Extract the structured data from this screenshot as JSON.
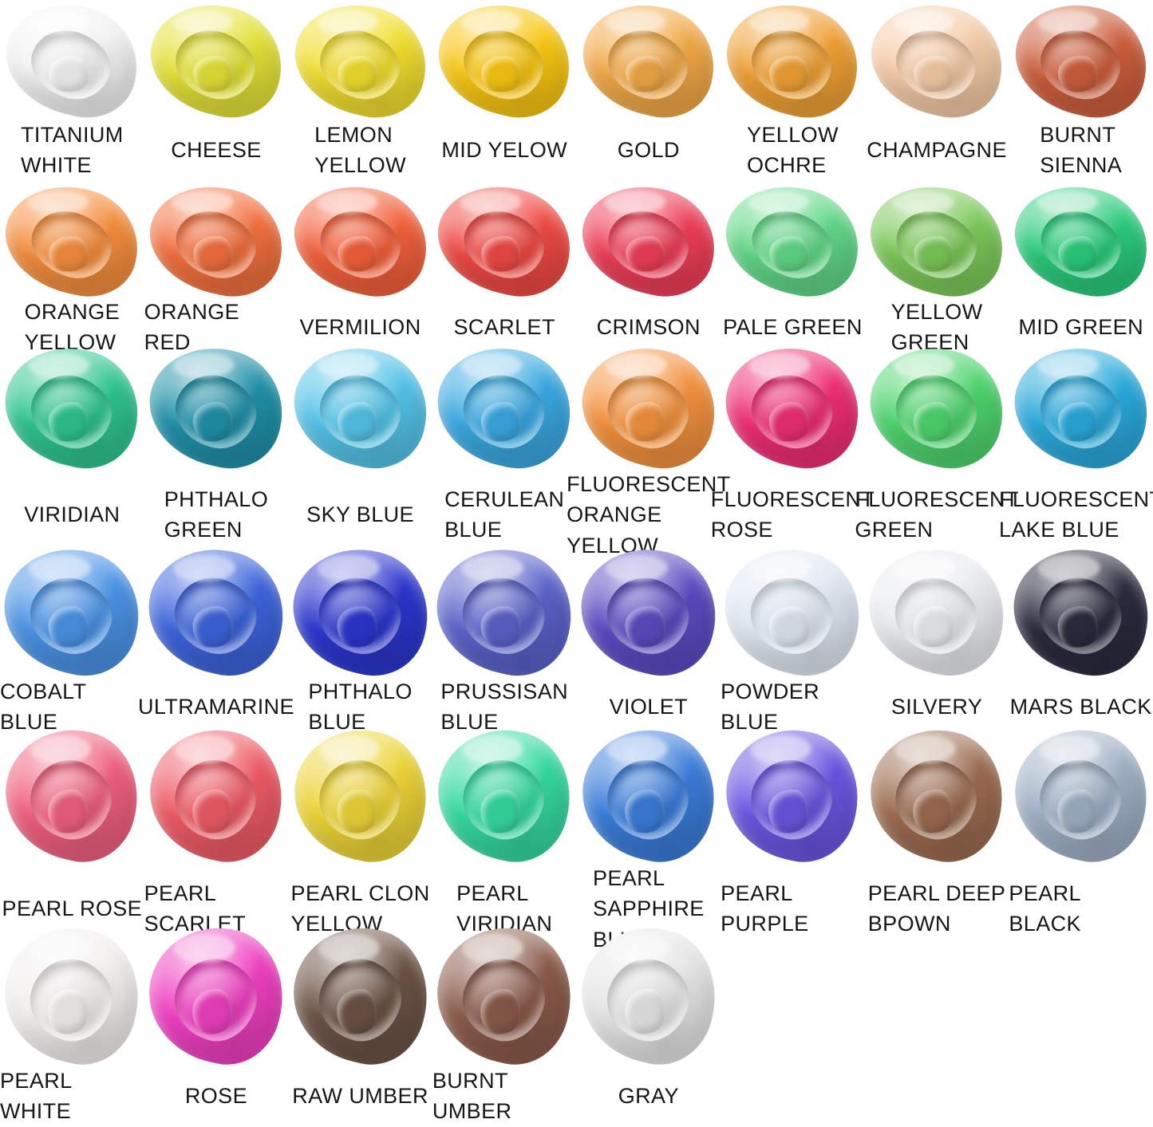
{
  "page": {
    "background": "#ffffff",
    "label_text_color": "#161616"
  },
  "swatch_grid": {
    "rows": [
      {
        "items": [
          {
            "label": "TITANIUM\nWHITE",
            "color": "#f3f3f3"
          },
          {
            "label": "CHEESE",
            "color": "#e4e238"
          },
          {
            "label": "LEMON\nYELLOW",
            "color": "#f2df2f"
          },
          {
            "label": "MID YELOW",
            "color": "#f9c713"
          },
          {
            "label": "GOLD",
            "color": "#f2a947"
          },
          {
            "label": "YELLOW\nOCHRE",
            "color": "#f0a135"
          },
          {
            "label": "CHAMPAGNE",
            "color": "#f5cba6"
          },
          {
            "label": "BURNT\nSIENNA",
            "color": "#cd5f3d"
          }
        ]
      },
      {
        "items": [
          {
            "label": "ORANGE\nYELLOW",
            "color": "#f68e3e"
          },
          {
            "label": "ORANGE RED",
            "color": "#f3703f"
          },
          {
            "label": "VERMILION",
            "color": "#f4613c"
          },
          {
            "label": "SCARLET",
            "color": "#f04a45"
          },
          {
            "label": "CRIMSON",
            "color": "#ef3f58"
          },
          {
            "label": "PALE GREEN",
            "color": "#62d888"
          },
          {
            "label": "YELLOW\nGREEN",
            "color": "#7dc95a"
          },
          {
            "label": "MID GREEN",
            "color": "#2bcc7c"
          }
        ]
      },
      {
        "items": [
          {
            "label": "VIRIDIAN",
            "color": "#2fc68e"
          },
          {
            "label": "PHTHALO\nGREEN",
            "color": "#2191a9"
          },
          {
            "label": "SKY BLUE",
            "color": "#55c4e9"
          },
          {
            "label": "CERULEAN\nBLUE",
            "color": "#3ba9e2"
          },
          {
            "label": "FLUORESCENT\nORANGE\nYELLOW",
            "color": "#f4923f"
          },
          {
            "label": "FLUORESCENT\nROSE",
            "color": "#ef2e74"
          },
          {
            "label": "FLUORESCENT\nGREEN",
            "color": "#4fd56e"
          },
          {
            "label": "FLUORESCENT\nLAKE BLUE",
            "color": "#2baadd"
          }
        ]
      },
      {
        "items": [
          {
            "label": "COBALT BLUE",
            "color": "#4b93e6"
          },
          {
            "label": "ULTRAMARINE",
            "color": "#3d64dc"
          },
          {
            "label": "PHTHALO\nBLUE",
            "color": "#2c36ce"
          },
          {
            "label": "PRUSSISAN\nBLUE",
            "color": "#5b63ca"
          },
          {
            "label": "VIOLET",
            "color": "#5a4cc2"
          },
          {
            "label": "POWDER BLUE",
            "color": "#dfe8f2"
          },
          {
            "label": "SILVERY",
            "color": "#e9ebef"
          },
          {
            "label": "MARS BLACK",
            "color": "#2b2b3e"
          }
        ]
      },
      {
        "items": [
          {
            "label": "PEARL ROSE",
            "color": "#f0607f"
          },
          {
            "label": "PEARL SCARLET",
            "color": "#ef5b66"
          },
          {
            "label": "PEARL CLON\nYELLOW",
            "color": "#edd437"
          },
          {
            "label": "PEARL\nVIRIDIAN",
            "color": "#36daa1"
          },
          {
            "label": "PEARL\nSAPPHIRE\nBLUE",
            "color": "#3b7dda"
          },
          {
            "label": "PEARL PURPLE",
            "color": "#6b56e2"
          },
          {
            "label": "PEARL DEEP\nBPOWN",
            "color": "#9c6c51"
          },
          {
            "label": "PEARL BLACK",
            "color": "#9fb0c5"
          }
        ]
      },
      {
        "items": [
          {
            "label": "PEARL WHITE",
            "color": "#f2efee"
          },
          {
            "label": "ROSE",
            "color": "#ef40c1"
          },
          {
            "label": "RAW UMBER",
            "color": "#6c5345"
          },
          {
            "label": "BURNT UMBER",
            "color": "#8b5b4b"
          },
          {
            "label": "GRAY",
            "color": "#e6e6e6"
          }
        ]
      }
    ]
  }
}
